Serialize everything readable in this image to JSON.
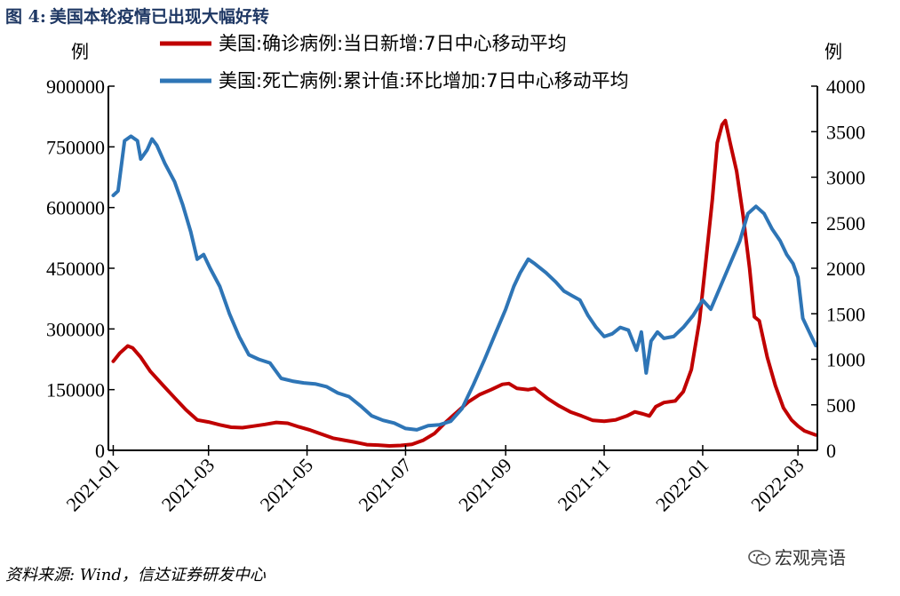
{
  "title": {
    "figure_label": "图 4:",
    "text": "美国本轮疫情已出现大幅好转"
  },
  "source": "资料来源: Wind，信达证券研发中心",
  "watermark": {
    "text": "宏观亮语",
    "icon": "wechat-icon"
  },
  "chart_data": {
    "type": "line",
    "left_axis_unit": "例",
    "right_axis_unit": "例",
    "left_ylim": [
      0,
      900000
    ],
    "left_ticks": [
      "0",
      "150000",
      "300000",
      "450000",
      "600000",
      "750000",
      "900000"
    ],
    "right_ylim": [
      0,
      4000
    ],
    "right_ticks": [
      "0",
      "500",
      "1000",
      "1500",
      "2000",
      "2500",
      "3000",
      "3500",
      "4000"
    ],
    "x_range": [
      "2021-01-01",
      "2022-03-12"
    ],
    "x_ticks": [
      "2021-01",
      "2021-03",
      "2021-05",
      "2021-07",
      "2021-09",
      "2021-11",
      "2022-01",
      "2022-03"
    ],
    "legend_position": "top",
    "grid": false,
    "series": [
      {
        "name": "美国:确诊病例:当日新增:7日中心移动平均",
        "axis": "left",
        "color": "#c00000",
        "points": [
          [
            "2021-01-01",
            220000
          ],
          [
            "2021-01-05",
            240000
          ],
          [
            "2021-01-10",
            258000
          ],
          [
            "2021-01-13",
            253000
          ],
          [
            "2021-01-18",
            230000
          ],
          [
            "2021-01-24",
            195000
          ],
          [
            "2021-02-01",
            160000
          ],
          [
            "2021-02-08",
            130000
          ],
          [
            "2021-02-15",
            100000
          ],
          [
            "2021-02-22",
            75000
          ],
          [
            "2021-03-01",
            70000
          ],
          [
            "2021-03-08",
            63000
          ],
          [
            "2021-03-15",
            57000
          ],
          [
            "2021-03-22",
            56000
          ],
          [
            "2021-03-29",
            60000
          ],
          [
            "2021-04-05",
            64000
          ],
          [
            "2021-04-12",
            69000
          ],
          [
            "2021-04-19",
            67000
          ],
          [
            "2021-04-26",
            58000
          ],
          [
            "2021-05-03",
            50000
          ],
          [
            "2021-05-10",
            40000
          ],
          [
            "2021-05-17",
            30000
          ],
          [
            "2021-05-24",
            25000
          ],
          [
            "2021-05-31",
            20000
          ],
          [
            "2021-06-07",
            14000
          ],
          [
            "2021-06-14",
            13000
          ],
          [
            "2021-06-21",
            11000
          ],
          [
            "2021-06-28",
            12000
          ],
          [
            "2021-07-05",
            15000
          ],
          [
            "2021-07-12",
            25000
          ],
          [
            "2021-07-19",
            42000
          ],
          [
            "2021-07-26",
            70000
          ],
          [
            "2021-08-02",
            95000
          ],
          [
            "2021-08-09",
            120000
          ],
          [
            "2021-08-16",
            138000
          ],
          [
            "2021-08-23",
            150000
          ],
          [
            "2021-08-30",
            163000
          ],
          [
            "2021-09-03",
            165000
          ],
          [
            "2021-09-08",
            153000
          ],
          [
            "2021-09-15",
            150000
          ],
          [
            "2021-09-19",
            153000
          ],
          [
            "2021-09-27",
            128000
          ],
          [
            "2021-10-04",
            110000
          ],
          [
            "2021-10-11",
            95000
          ],
          [
            "2021-10-18",
            85000
          ],
          [
            "2021-10-25",
            74000
          ],
          [
            "2021-11-01",
            72000
          ],
          [
            "2021-11-08",
            75000
          ],
          [
            "2021-11-15",
            85000
          ],
          [
            "2021-11-20",
            95000
          ],
          [
            "2021-11-25",
            90000
          ],
          [
            "2021-11-29",
            85000
          ],
          [
            "2021-12-03",
            108000
          ],
          [
            "2021-12-08",
            118000
          ],
          [
            "2021-12-15",
            122000
          ],
          [
            "2021-12-20",
            145000
          ],
          [
            "2021-12-25",
            200000
          ],
          [
            "2021-12-30",
            320000
          ],
          [
            "2022-01-03",
            470000
          ],
          [
            "2022-01-07",
            620000
          ],
          [
            "2022-01-10",
            760000
          ],
          [
            "2022-01-13",
            805000
          ],
          [
            "2022-01-15",
            815000
          ],
          [
            "2022-01-18",
            760000
          ],
          [
            "2022-01-22",
            690000
          ],
          [
            "2022-01-26",
            580000
          ],
          [
            "2022-01-30",
            450000
          ],
          [
            "2022-02-02",
            330000
          ],
          [
            "2022-02-05",
            320000
          ],
          [
            "2022-02-10",
            230000
          ],
          [
            "2022-02-15",
            160000
          ],
          [
            "2022-02-20",
            105000
          ],
          [
            "2022-02-25",
            75000
          ],
          [
            "2022-03-01",
            60000
          ],
          [
            "2022-03-05",
            48000
          ],
          [
            "2022-03-12",
            38000
          ]
        ]
      },
      {
        "name": "美国:死亡病例:累计值:环比增加:7日中心移动平均",
        "axis": "right",
        "color": "#2e75b6",
        "points": [
          [
            "2021-01-01",
            2800
          ],
          [
            "2021-01-04",
            2850
          ],
          [
            "2021-01-08",
            3400
          ],
          [
            "2021-01-12",
            3450
          ],
          [
            "2021-01-16",
            3400
          ],
          [
            "2021-01-18",
            3200
          ],
          [
            "2021-01-22",
            3300
          ],
          [
            "2021-01-25",
            3420
          ],
          [
            "2021-01-28",
            3350
          ],
          [
            "2021-02-02",
            3150
          ],
          [
            "2021-02-08",
            2950
          ],
          [
            "2021-02-13",
            2700
          ],
          [
            "2021-02-18",
            2400
          ],
          [
            "2021-02-22",
            2100
          ],
          [
            "2021-02-26",
            2150
          ],
          [
            "2021-03-02",
            2000
          ],
          [
            "2021-03-08",
            1800
          ],
          [
            "2021-03-14",
            1500
          ],
          [
            "2021-03-20",
            1250
          ],
          [
            "2021-03-26",
            1050
          ],
          [
            "2021-04-01",
            1000
          ],
          [
            "2021-04-08",
            960
          ],
          [
            "2021-04-15",
            790
          ],
          [
            "2021-04-22",
            760
          ],
          [
            "2021-04-29",
            740
          ],
          [
            "2021-05-06",
            730
          ],
          [
            "2021-05-13",
            700
          ],
          [
            "2021-05-20",
            630
          ],
          [
            "2021-05-27",
            590
          ],
          [
            "2021-06-03",
            490
          ],
          [
            "2021-06-10",
            380
          ],
          [
            "2021-06-17",
            330
          ],
          [
            "2021-06-24",
            300
          ],
          [
            "2021-07-01",
            240
          ],
          [
            "2021-07-08",
            225
          ],
          [
            "2021-07-15",
            270
          ],
          [
            "2021-07-22",
            280
          ],
          [
            "2021-07-29",
            320
          ],
          [
            "2021-08-05",
            460
          ],
          [
            "2021-08-12",
            720
          ],
          [
            "2021-08-19",
            1000
          ],
          [
            "2021-08-26",
            1300
          ],
          [
            "2021-09-01",
            1550
          ],
          [
            "2021-09-06",
            1800
          ],
          [
            "2021-09-10",
            1950
          ],
          [
            "2021-09-15",
            2100
          ],
          [
            "2021-09-19",
            2050
          ],
          [
            "2021-09-26",
            1950
          ],
          [
            "2021-10-02",
            1850
          ],
          [
            "2021-10-07",
            1750
          ],
          [
            "2021-10-12",
            1700
          ],
          [
            "2021-10-17",
            1650
          ],
          [
            "2021-10-22",
            1480
          ],
          [
            "2021-10-27",
            1350
          ],
          [
            "2021-11-01",
            1250
          ],
          [
            "2021-11-06",
            1280
          ],
          [
            "2021-11-11",
            1350
          ],
          [
            "2021-11-16",
            1320
          ],
          [
            "2021-11-21",
            1100
          ],
          [
            "2021-11-24",
            1300
          ],
          [
            "2021-11-27",
            850
          ],
          [
            "2021-11-30",
            1200
          ],
          [
            "2021-12-04",
            1300
          ],
          [
            "2021-12-08",
            1230
          ],
          [
            "2021-12-14",
            1250
          ],
          [
            "2021-12-20",
            1350
          ],
          [
            "2021-12-26",
            1480
          ],
          [
            "2022-01-01",
            1650
          ],
          [
            "2022-01-06",
            1550
          ],
          [
            "2022-01-12",
            1800
          ],
          [
            "2022-01-18",
            2050
          ],
          [
            "2022-01-24",
            2300
          ],
          [
            "2022-01-29",
            2600
          ],
          [
            "2022-02-03",
            2680
          ],
          [
            "2022-02-08",
            2600
          ],
          [
            "2022-02-13",
            2430
          ],
          [
            "2022-02-18",
            2300
          ],
          [
            "2022-02-22",
            2150
          ],
          [
            "2022-02-26",
            2050
          ],
          [
            "2022-03-01",
            1900
          ],
          [
            "2022-03-04",
            1450
          ],
          [
            "2022-03-08",
            1300
          ],
          [
            "2022-03-12",
            1150
          ]
        ]
      }
    ]
  }
}
